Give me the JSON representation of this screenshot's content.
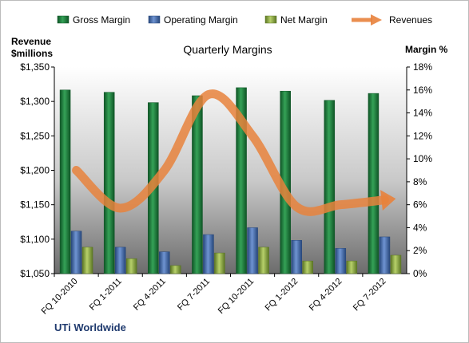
{
  "chart_data": {
    "type": "bar",
    "title": "Quarterly Margins",
    "left_axis_title": [
      "Revenue",
      "$millions"
    ],
    "right_axis_title": "Margin %",
    "footer_label": "UTi Worldwide",
    "categories": [
      "FQ 10-2010",
      "FQ 1-2011",
      "FQ 4-2011",
      "FQ 7-2011",
      "FQ 10-2011",
      "FQ 1-2012",
      "FQ 4-2012",
      "FQ 7-2012"
    ],
    "left_axis": {
      "min": 1050,
      "max": 1350,
      "step": 50,
      "tick_labels": [
        "$1,050",
        "$1,100",
        "$1,150",
        "$1,200",
        "$1,250",
        "$1,300",
        "$1,350"
      ]
    },
    "right_axis": {
      "min": 0,
      "max": 18,
      "step": 2,
      "tick_labels": [
        "0%",
        "2%",
        "4%",
        "6%",
        "8%",
        "10%",
        "12%",
        "14%",
        "16%",
        "18%"
      ]
    },
    "series": [
      {
        "name": "Gross Margin",
        "axis": "right",
        "kind": "bar",
        "color": "#1e7b3c",
        "values": [
          16.0,
          15.8,
          14.9,
          15.5,
          16.2,
          15.9,
          15.1,
          15.7
        ]
      },
      {
        "name": "Operating Margin",
        "axis": "right",
        "kind": "bar",
        "color": "#3a64a8",
        "values": [
          3.7,
          2.3,
          1.9,
          3.4,
          4.0,
          2.9,
          2.2,
          3.2
        ]
      },
      {
        "name": "Net Margin",
        "axis": "right",
        "kind": "bar",
        "color": "#8aac3e",
        "values": [
          2.3,
          1.3,
          0.7,
          1.8,
          2.3,
          1.1,
          1.1,
          1.6
        ]
      },
      {
        "name": "Revenues",
        "axis": "left",
        "kind": "line",
        "color": "#e8823c",
        "values": [
          1200,
          1145,
          1200,
          1310,
          1250,
          1147,
          1150,
          1157
        ]
      }
    ],
    "grid": false,
    "legend_position": "top"
  }
}
